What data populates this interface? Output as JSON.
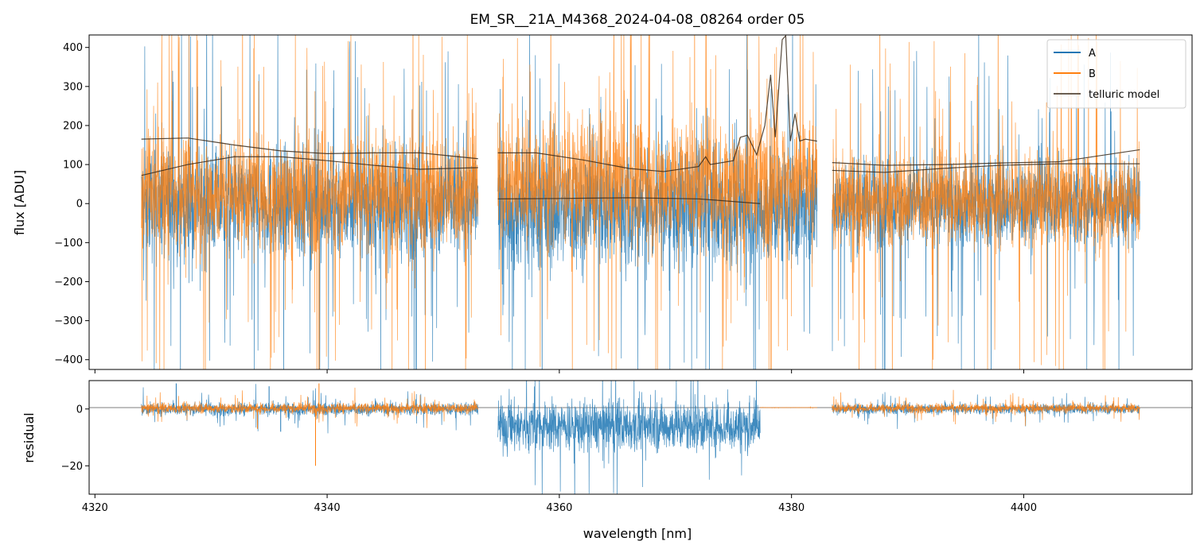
{
  "title": "EM_SR__21A_M4368_2024-04-08_08264  order 05",
  "colors": {
    "A": "#1f77b4",
    "B": "#ff7f0e",
    "telluric": "#3a2a1a",
    "axis": "#000000"
  },
  "chart_data": [
    {
      "type": "line",
      "panel": "flux",
      "title": "EM_SR__21A_M4368_2024-04-08_08264  order 05",
      "xlabel": "",
      "ylabel": "flux [ADU]",
      "xlim": [
        4319.5,
        4414.5
      ],
      "ylim": [
        -425,
        432
      ],
      "yticks": [
        400,
        300,
        200,
        100,
        0,
        -100,
        -200,
        -300,
        -400
      ],
      "ytick_labels": [
        "400",
        "300",
        "200",
        "100",
        "0",
        "−100",
        "−200",
        "−300",
        "−400"
      ],
      "xticks": [
        4320,
        4340,
        4360,
        4380,
        4400
      ],
      "legend": {
        "position": "top-right",
        "entries": [
          "A",
          "B",
          "telluric model"
        ]
      },
      "segments": [
        {
          "x_start": 4324.0,
          "x_end": 4353.0,
          "A_center": 0,
          "A_noise": 140,
          "B_center": 30,
          "B_noise": 150
        },
        {
          "x_start": 4354.7,
          "x_end": 4382.2,
          "A_center": -10,
          "A_noise": 160,
          "B_center": 60,
          "B_noise": 160
        },
        {
          "x_start": 4383.5,
          "x_end": 4410.0,
          "A_center": 0,
          "A_noise": 110,
          "B_center": 10,
          "B_noise": 120
        }
      ],
      "telluric_model": [
        {
          "x": [
            4324,
            4328,
            4332,
            4336,
            4340,
            4344,
            4348,
            4353
          ],
          "y": [
            165,
            168,
            150,
            135,
            128,
            130,
            130,
            115
          ]
        },
        {
          "x": [
            4324,
            4328,
            4332,
            4336,
            4340,
            4344,
            4348,
            4353
          ],
          "y": [
            72,
            100,
            120,
            120,
            110,
            98,
            88,
            92
          ]
        },
        {
          "x": [
            4354.7,
            4358,
            4362,
            4366,
            4369,
            4372,
            4372.6,
            4373,
            4375,
            4375.6,
            4376.2,
            4377,
            4377.7,
            4378.2,
            4378.6,
            4379.2,
            4379.5,
            4379.9,
            4380.3,
            4380.7,
            4381.2,
            4382.2
          ],
          "y": [
            130,
            130,
            112,
            90,
            82,
            95,
            120,
            100,
            110,
            170,
            175,
            125,
            200,
            330,
            170,
            420,
            430,
            160,
            230,
            160,
            165,
            160
          ]
        },
        {
          "x": [
            4354.7,
            4360,
            4366,
            4372,
            4377.3
          ],
          "y": [
            12,
            13,
            15,
            12,
            0
          ]
        },
        {
          "x": [
            4383.5,
            4388,
            4393,
            4398,
            4403,
            4410
          ],
          "y": [
            105,
            98,
            100,
            104,
            107,
            138
          ]
        },
        {
          "x": [
            4383.5,
            4388,
            4393,
            4398,
            4403,
            4410
          ],
          "y": [
            85,
            80,
            90,
            98,
            102,
            102
          ]
        }
      ]
    },
    {
      "type": "line",
      "panel": "residual",
      "xlabel": "wavelength [nm]",
      "ylabel": "residual",
      "xlim": [
        4319.5,
        4414.5
      ],
      "ylim": [
        -30,
        10
      ],
      "yticks": [
        0,
        -20
      ],
      "ytick_labels": [
        "0",
        "−20"
      ],
      "xticks": [
        4320,
        4340,
        4360,
        4380,
        4400
      ],
      "xtick_labels": [
        "4320",
        "4340",
        "4360",
        "4380",
        "4400"
      ],
      "reference_line_y": 0.5,
      "segments": [
        {
          "series": "A",
          "x_start": 4324.0,
          "x_end": 4353.0,
          "center": 0,
          "noise": 2.2
        },
        {
          "series": "B",
          "x_start": 4324.0,
          "x_end": 4353.0,
          "center": 0.3,
          "noise": 1.8
        },
        {
          "series": "A",
          "x_start": 4354.7,
          "x_end": 4377.3,
          "center": -6,
          "noise": 9
        },
        {
          "series": "B",
          "x_start": 4377.3,
          "x_end": 4382.2,
          "center": 0.5,
          "noise": 0.05
        },
        {
          "series": "A",
          "x_start": 4383.5,
          "x_end": 4410.0,
          "center": 0,
          "noise": 1.8
        },
        {
          "series": "B",
          "x_start": 4383.5,
          "x_end": 4410.0,
          "center": 0.3,
          "noise": 1.6
        }
      ],
      "spikes": [
        {
          "series": "A",
          "x": 4327.0,
          "y": 9
        },
        {
          "series": "B",
          "x": 4334.0,
          "y": -7
        },
        {
          "series": "A",
          "x": 4335.0,
          "y": 8
        },
        {
          "series": "B",
          "x": 4339.0,
          "y": -20
        },
        {
          "series": "B",
          "x": 4339.3,
          "y": 9
        },
        {
          "series": "A",
          "x": 4336.0,
          "y": -8
        }
      ]
    }
  ]
}
